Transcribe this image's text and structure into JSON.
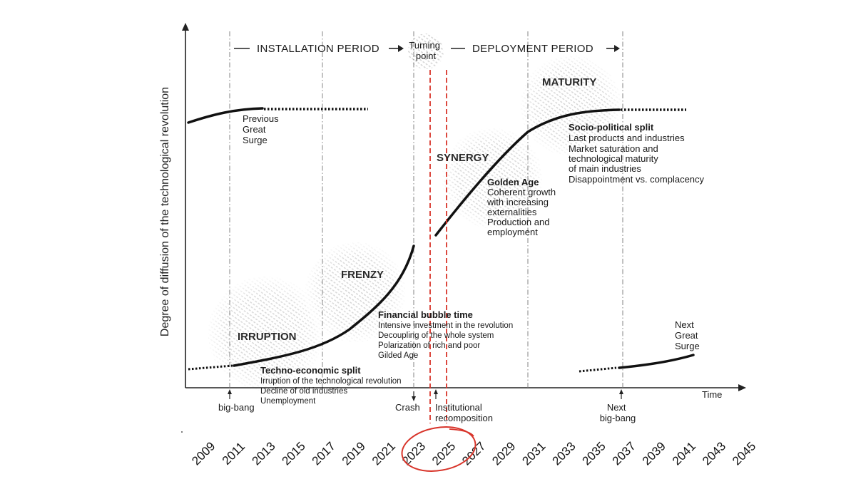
{
  "header": {
    "installation": "INSTALLATION PERIOD",
    "turning_point": [
      "Turning",
      "point"
    ],
    "deployment": "DEPLOYMENT PERIOD"
  },
  "axes": {
    "y_label": "Degree of diffusion of the technological revolution",
    "x_label": "Time"
  },
  "phases": {
    "irruption": "IRRUPTION",
    "frenzy": "FRENZY",
    "synergy": "SYNERGY",
    "maturity": "MATURITY"
  },
  "previous_surge": [
    "Previous",
    "Great",
    "Surge"
  ],
  "next_surge": [
    "Next",
    "Great",
    "Surge"
  ],
  "techno_economic": {
    "title": "Techno-economic split",
    "lines": [
      "Irruption of the technological revolution",
      "Decline of old industries",
      "Unemployment"
    ]
  },
  "financial_bubble": {
    "title": "Financial bubble time",
    "lines": [
      "Intensive investment in the revolution",
      "Decoupling of the whole system",
      "Polarization of rich and poor",
      "Gilded Age"
    ]
  },
  "golden_age": {
    "title": "Golden Age",
    "lines": [
      "Coherent growth",
      "with increasing",
      "externalities",
      "Production and",
      "employment"
    ]
  },
  "socio_political": {
    "title": "Socio-political split",
    "lines": [
      "Last products and industries",
      "Market saturation and",
      "technological maturity",
      "of main industries",
      "Disappointment vs. complacency"
    ]
  },
  "markers": {
    "big_bang": "big-bang",
    "crash": "Crash",
    "institutional": [
      "Institutional",
      "recomposition"
    ],
    "next_big_bang": [
      "Next",
      "big-bang"
    ]
  },
  "years": [
    "2009",
    "2011",
    "2013",
    "2015",
    "2017",
    "2019",
    "2021",
    "2023",
    "2025",
    "2027",
    "2029",
    "2031",
    "2033",
    "2035",
    "2037",
    "2039",
    "2041",
    "2043",
    "2045"
  ],
  "highlight_color": "#d8342a"
}
